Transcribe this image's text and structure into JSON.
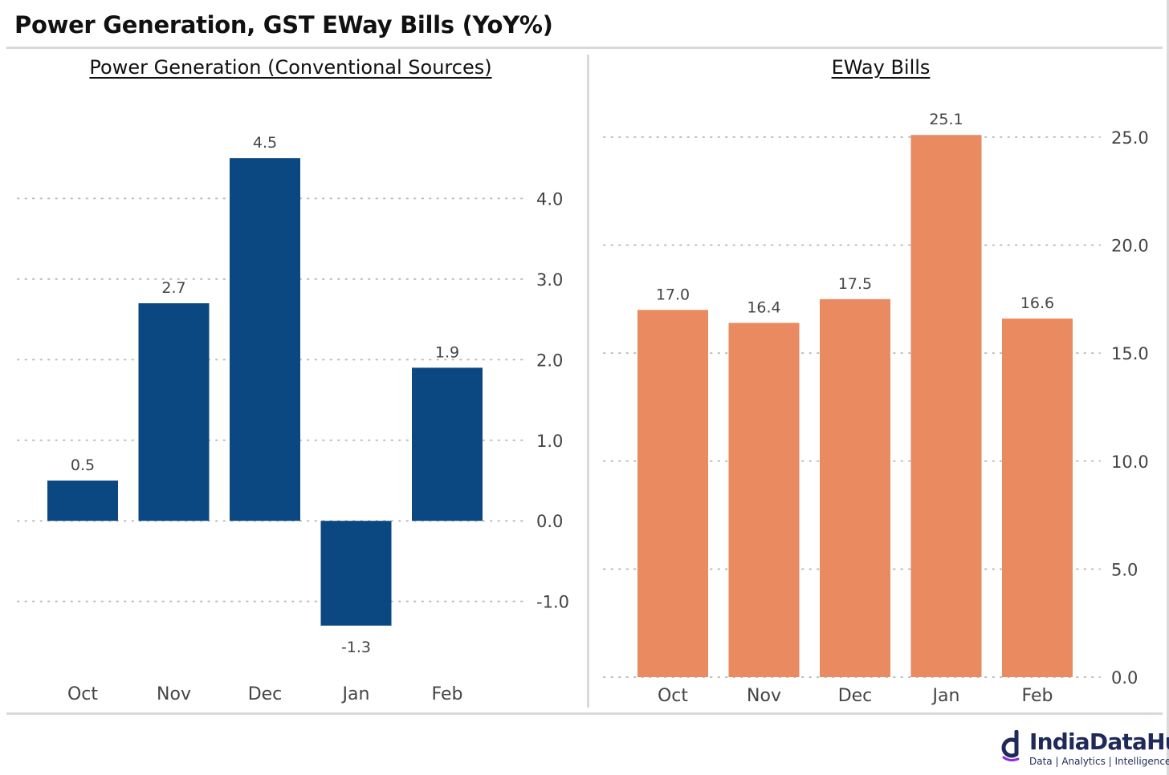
{
  "page": {
    "title": "Power Generation, GST EWay Bills (YoY%)"
  },
  "brand": {
    "name": "IndiaDataHub",
    "tagline": "Data | Analytics | Intelligence",
    "colors": {
      "text": "#1f2a5a",
      "accent": "#8a2be2"
    }
  },
  "chart_data": [
    {
      "type": "bar",
      "title": "Power Generation (Conventional Sources)",
      "categories": [
        "Oct",
        "Nov",
        "Dec",
        "Jan",
        "Feb"
      ],
      "values": [
        0.5,
        2.7,
        4.5,
        -1.3,
        1.9
      ],
      "value_labels": [
        "0.5",
        "2.7",
        "4.5",
        "-1.3",
        "1.9"
      ],
      "yticks": [
        "-1.0",
        "0.0",
        "1.0",
        "2.0",
        "3.0",
        "4.0"
      ],
      "ytick_values": [
        -1,
        0,
        1,
        2,
        3,
        4
      ],
      "ylim": [
        -1.75,
        4.85
      ],
      "y_axis_side": "right",
      "grid": "dotted horizontal",
      "color": "#0b4780"
    },
    {
      "type": "bar",
      "title": "EWay Bills",
      "categories": [
        "Oct",
        "Nov",
        "Dec",
        "Jan",
        "Feb"
      ],
      "values": [
        17.0,
        16.4,
        17.5,
        25.1,
        16.6
      ],
      "value_labels": [
        "17.0",
        "16.4",
        "17.5",
        "25.1",
        "16.6"
      ],
      "yticks": [
        "0.0",
        "5.0",
        "10.0",
        "15.0",
        "20.0",
        "25.0"
      ],
      "ytick_values": [
        0,
        5,
        10,
        15,
        20,
        25
      ],
      "ylim": [
        0,
        26
      ],
      "y_axis_side": "right",
      "grid": "dotted horizontal",
      "color": "#ea8a60"
    }
  ]
}
